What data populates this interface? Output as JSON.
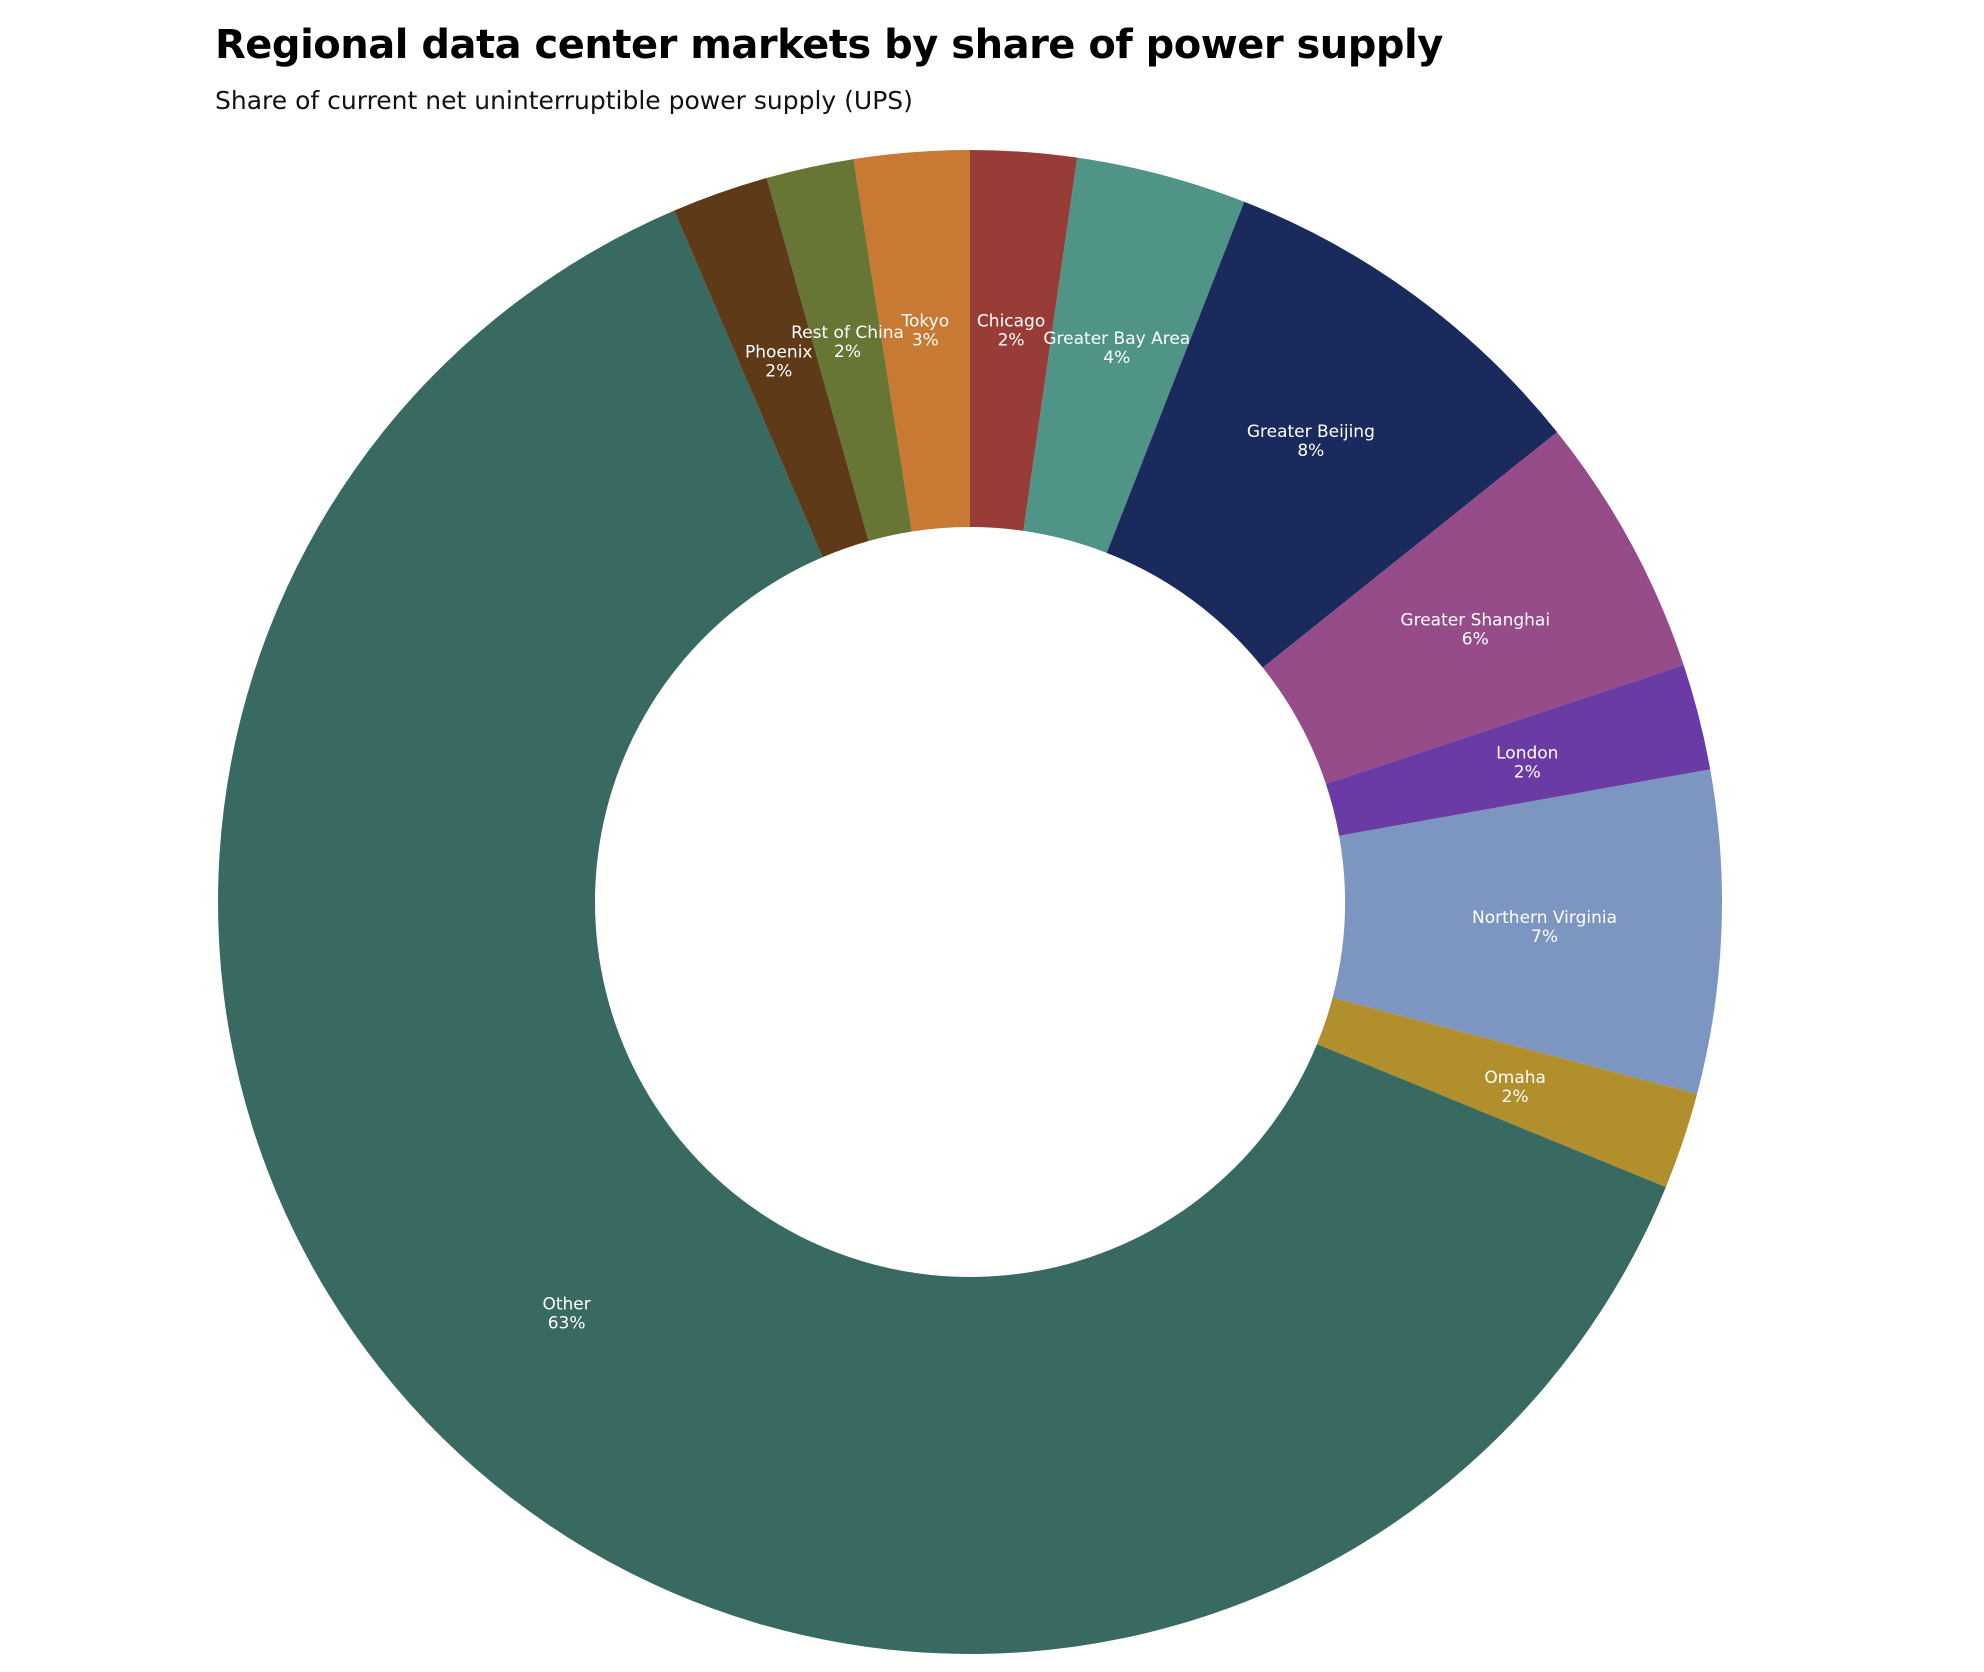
{
  "title": "Regional data center markets by share of power supply",
  "subtitle": "Share of current net uninterruptible power supply (UPS)",
  "chart_data": {
    "type": "pie",
    "variant": "donut",
    "title": "Regional data center markets by share of power supply",
    "subtitle": "Share of current net uninterruptible power supply (UPS)",
    "start_angle_deg": 0,
    "direction": "clockwise",
    "slices": [
      {
        "label": "Chicago",
        "value": 2.3,
        "display": "2%",
        "color": "#973c37"
      },
      {
        "label": "Greater Bay Area",
        "value": 3.7,
        "display": "4%",
        "color": "#509387"
      },
      {
        "label": "Greater Beijing",
        "value": 8.4,
        "display": "8%",
        "color": "#1b2a5c"
      },
      {
        "label": "Greater Shanghai",
        "value": 5.7,
        "display": "6%",
        "color": "#954c88"
      },
      {
        "label": "London",
        "value": 2.3,
        "display": "2%",
        "color": "#6a3ba5"
      },
      {
        "label": "Northern Virginia",
        "value": 7.0,
        "display": "7%",
        "color": "#7d96c1"
      },
      {
        "label": "Omaha",
        "value": 2.1,
        "display": "2%",
        "color": "#b08f2c"
      },
      {
        "label": "Other",
        "value": 63.0,
        "display": "63%",
        "color": "#386a61"
      },
      {
        "label": "Phoenix",
        "value": 2.1,
        "display": "2%",
        "color": "#5e3a19"
      },
      {
        "label": "Rest of China",
        "value": 1.9,
        "display": "2%",
        "color": "#677634"
      },
      {
        "label": "Tokyo",
        "value": 2.5,
        "display": "3%",
        "color": "#c87933"
      }
    ]
  }
}
